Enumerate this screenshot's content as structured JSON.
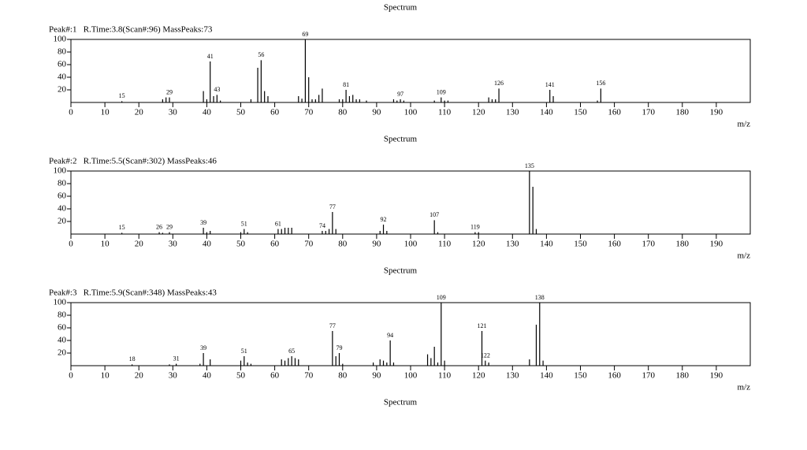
{
  "chart_data": [
    {
      "type": "bar",
      "title": "Spectrum",
      "subtitle": "Peak#:1   R.Time:3.8(Scan#:96) MassPeaks:73",
      "xlabel": "m/z",
      "xlim": [
        0,
        200
      ],
      "xticks": [
        0,
        10,
        20,
        30,
        40,
        50,
        60,
        70,
        80,
        90,
        100,
        110,
        120,
        130,
        140,
        150,
        160,
        170,
        180,
        190
      ],
      "ylim": [
        0,
        100
      ],
      "yticks": [
        20,
        40,
        60,
        80,
        100
      ],
      "color": "#000000",
      "x": [
        15,
        27,
        28,
        29,
        39,
        40,
        41,
        42,
        43,
        44,
        53,
        55,
        56,
        57,
        58,
        67,
        68,
        69,
        70,
        71,
        72,
        73,
        74,
        79,
        80,
        81,
        82,
        83,
        84,
        85,
        87,
        95,
        96,
        97,
        98,
        107,
        109,
        110,
        111,
        123,
        124,
        125,
        126,
        141,
        142,
        155,
        156
      ],
      "values": [
        2,
        5,
        8,
        8,
        18,
        5,
        65,
        10,
        12,
        3,
        5,
        55,
        67,
        18,
        10,
        10,
        6,
        100,
        40,
        5,
        5,
        12,
        22,
        5,
        5,
        20,
        10,
        12,
        5,
        5,
        3,
        5,
        3,
        5,
        3,
        3,
        8,
        3,
        3,
        8,
        5,
        5,
        22,
        20,
        10,
        3,
        22
      ],
      "peak_labels": [
        "15",
        null,
        null,
        "29",
        null,
        null,
        "41",
        null,
        "43",
        null,
        null,
        null,
        "56",
        null,
        null,
        null,
        null,
        "69",
        null,
        null,
        null,
        null,
        null,
        null,
        null,
        "81",
        null,
        null,
        null,
        null,
        null,
        null,
        null,
        "97",
        null,
        null,
        "109",
        null,
        null,
        null,
        null,
        null,
        "126",
        "141",
        null,
        null,
        "156"
      ]
    },
    {
      "type": "bar",
      "title": "Spectrum",
      "subtitle": "Peak#:2   R.Time:5.5(Scan#:302) MassPeaks:46",
      "xlabel": "m/z",
      "xlim": [
        0,
        200
      ],
      "xticks": [
        0,
        10,
        20,
        30,
        40,
        50,
        60,
        70,
        80,
        90,
        100,
        110,
        120,
        130,
        140,
        150,
        160,
        170,
        180,
        190
      ],
      "ylim": [
        0,
        100
      ],
      "yticks": [
        20,
        40,
        60,
        80,
        100
      ],
      "color": "#000000",
      "x": [
        15,
        26,
        27,
        29,
        39,
        40,
        41,
        50,
        51,
        52,
        61,
        62,
        63,
        64,
        65,
        74,
        75,
        76,
        77,
        78,
        91,
        92,
        93,
        107,
        108,
        119,
        120,
        135,
        136,
        137
      ],
      "values": [
        2,
        3,
        2,
        3,
        10,
        3,
        5,
        3,
        8,
        3,
        8,
        8,
        10,
        10,
        10,
        5,
        5,
        8,
        35,
        8,
        5,
        15,
        5,
        22,
        3,
        3,
        3,
        100,
        75,
        8
      ],
      "peak_labels": [
        "15",
        "26",
        null,
        "29",
        "39",
        null,
        null,
        null,
        "51",
        null,
        "61",
        null,
        null,
        null,
        null,
        "74",
        null,
        null,
        "77",
        null,
        null,
        "92",
        null,
        "107",
        null,
        "119",
        null,
        "135",
        null,
        null
      ]
    },
    {
      "type": "bar",
      "title": "Spectrum",
      "subtitle": "Peak#:3   R.Time:5.9(Scan#:348) MassPeaks:43",
      "xlabel": "m/z",
      "xlim": [
        0,
        200
      ],
      "xticks": [
        0,
        10,
        20,
        30,
        40,
        50,
        60,
        70,
        80,
        90,
        100,
        110,
        120,
        130,
        140,
        150,
        160,
        170,
        180,
        190
      ],
      "ylim": [
        0,
        100
      ],
      "yticks": [
        20,
        40,
        60,
        80,
        100
      ],
      "color": "#000000",
      "x": [
        18,
        29,
        31,
        38,
        39,
        41,
        50,
        51,
        52,
        53,
        62,
        63,
        64,
        65,
        66,
        67,
        77,
        78,
        79,
        80,
        89,
        91,
        92,
        93,
        94,
        95,
        105,
        106,
        107,
        108,
        109,
        110,
        121,
        122,
        123,
        135,
        137,
        138,
        139
      ],
      "values": [
        2,
        2,
        3,
        3,
        20,
        10,
        8,
        15,
        5,
        3,
        10,
        8,
        12,
        15,
        12,
        10,
        55,
        15,
        20,
        3,
        5,
        10,
        8,
        5,
        40,
        5,
        18,
        12,
        30,
        5,
        100,
        8,
        55,
        8,
        5,
        10,
        65,
        100,
        8
      ],
      "peak_labels": [
        "18",
        null,
        "31",
        null,
        "39",
        null,
        null,
        "51",
        null,
        null,
        null,
        null,
        null,
        "65",
        null,
        null,
        "77",
        null,
        "79",
        null,
        null,
        null,
        null,
        null,
        "94",
        null,
        null,
        null,
        null,
        null,
        "109",
        null,
        "121",
        "122",
        null,
        null,
        null,
        "138",
        null
      ]
    }
  ],
  "footer_title": "Spectrum"
}
